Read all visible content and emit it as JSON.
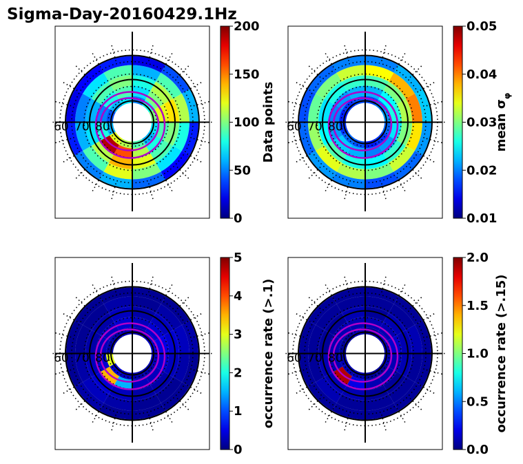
{
  "figure": {
    "title": "Sigma-Day-20160429.1Hz"
  },
  "chart_data": [
    {
      "type": "heatmap",
      "projection": "polar",
      "quantity": "data points",
      "lat_labels": [
        "60",
        "70",
        "80"
      ],
      "colorbar": {
        "label": "Data points",
        "ticks": [
          "0",
          "50",
          "100",
          "150",
          "200"
        ],
        "range": [
          0,
          200
        ],
        "colormap": "jet"
      },
      "values": {
        "ring_1": [
          60,
          90,
          110,
          80,
          70,
          100,
          120,
          90,
          60,
          50,
          70,
          90
        ],
        "ring_2": [
          80,
          110,
          130,
          100,
          90,
          120,
          140,
          110,
          70,
          60,
          90,
          100
        ],
        "ring_3": [
          70,
          100,
          120,
          90,
          80,
          110,
          160,
          190,
          80,
          50,
          80,
          90
        ],
        "ring_4": [
          50,
          80,
          100,
          70,
          60,
          90,
          110,
          120,
          60,
          40,
          60,
          70
        ],
        "ring_5": [
          20,
          40,
          60,
          30,
          25,
          45,
          60,
          50,
          30,
          20,
          25,
          30
        ]
      }
    },
    {
      "type": "heatmap",
      "projection": "polar",
      "quantity": "mean sigma phi",
      "lat_labels": [
        "60",
        "70",
        "80"
      ],
      "colorbar": {
        "label": "mean σ",
        "label_sub": "φ",
        "ticks": [
          "0.01",
          "0.02",
          "0.03",
          "0.04",
          "0.05"
        ],
        "range": [
          0.01,
          0.05
        ],
        "colormap": "jet"
      },
      "values": {
        "ring_1": [
          0.035,
          0.038,
          0.04,
          0.036,
          0.033,
          0.03,
          0.032,
          0.034,
          0.031,
          0.029,
          0.03,
          0.033
        ],
        "ring_2": [
          0.028,
          0.03,
          0.032,
          0.03,
          0.027,
          0.025,
          0.026,
          0.028,
          0.025,
          0.024,
          0.026,
          0.027
        ],
        "ring_3": [
          0.022,
          0.025,
          0.026,
          0.024,
          0.021,
          0.02,
          0.022,
          0.023,
          0.021,
          0.02,
          0.021,
          0.022
        ],
        "ring_4": [
          0.018,
          0.02,
          0.021,
          0.019,
          0.017,
          0.016,
          0.018,
          0.019,
          0.017,
          0.016,
          0.017,
          0.018
        ],
        "ring_5": [
          0.02,
          0.022,
          0.023,
          0.021,
          0.019,
          0.018,
          0.02,
          0.021,
          0.019,
          0.018,
          0.019,
          0.02
        ]
      }
    },
    {
      "type": "heatmap",
      "projection": "polar",
      "quantity": "occurrence rate (>.1)",
      "lat_labels": [
        "60",
        "70",
        "80"
      ],
      "colorbar": {
        "label": "occurrence rate (>.1)",
        "ticks": [
          "0",
          "1",
          "2",
          "3",
          "4",
          "5"
        ],
        "range": [
          0,
          5
        ],
        "colormap": "jet"
      },
      "values": {
        "ring_1": [
          0.1,
          0.2,
          0.3,
          0.2,
          0.1,
          0.1,
          0.2,
          0.3,
          0.2,
          0.1,
          0.1,
          0.2
        ],
        "ring_2": [
          0.2,
          0.3,
          0.4,
          0.3,
          0.2,
          0.2,
          0.3,
          0.4,
          0.3,
          0.2,
          0.2,
          0.3
        ],
        "ring_3": [
          0.3,
          0.4,
          0.5,
          0.4,
          0.3,
          0.3,
          1.5,
          3.5,
          0.4,
          0.3,
          0.3,
          0.4
        ],
        "ring_4": [
          0.2,
          0.3,
          0.4,
          0.3,
          0.2,
          0.2,
          0.3,
          0.4,
          3.0,
          0.2,
          0.2,
          0.3
        ],
        "ring_5": [
          0.1,
          0.1,
          0.2,
          0.1,
          0.1,
          0.1,
          0.1,
          0.2,
          0.1,
          0.1,
          0.1,
          0.1
        ]
      }
    },
    {
      "type": "heatmap",
      "projection": "polar",
      "quantity": "occurrence rate (>.15)",
      "lat_labels": [
        "60",
        "70",
        "80"
      ],
      "colorbar": {
        "label": "occurrence rate (>.15)",
        "ticks": [
          "0.0",
          "0.5",
          "1.0",
          "1.5",
          "2.0"
        ],
        "range": [
          0,
          2
        ],
        "colormap": "jet"
      },
      "values": {
        "ring_1": [
          0.05,
          0.05,
          0.1,
          0.05,
          0.05,
          0.05,
          0.05,
          0.1,
          0.05,
          0.05,
          0.05,
          0.05
        ],
        "ring_2": [
          0.05,
          0.1,
          0.1,
          0.1,
          0.05,
          0.05,
          0.1,
          0.1,
          0.1,
          0.05,
          0.05,
          0.1
        ],
        "ring_3": [
          0.1,
          0.1,
          0.15,
          0.1,
          0.1,
          0.1,
          0.2,
          1.9,
          0.1,
          0.1,
          0.1,
          0.1
        ],
        "ring_4": [
          0.05,
          0.1,
          0.1,
          0.1,
          0.05,
          0.05,
          0.1,
          0.1,
          0.1,
          0.05,
          0.05,
          0.1
        ],
        "ring_5": [
          0.05,
          0.05,
          0.05,
          0.05,
          0.05,
          0.05,
          0.05,
          0.05,
          0.05,
          0.05,
          0.05,
          0.05
        ]
      }
    }
  ]
}
